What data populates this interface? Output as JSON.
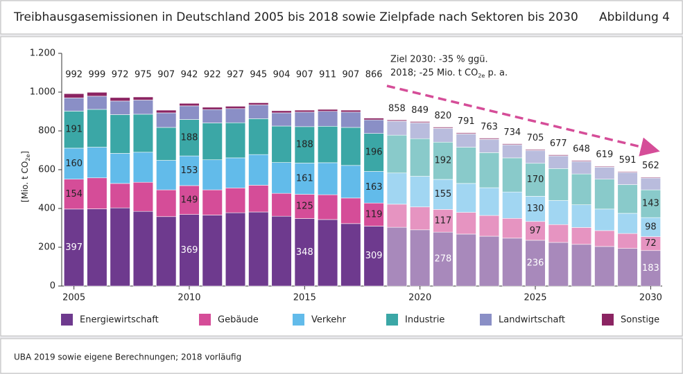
{
  "chart_data": {
    "type": "stacked_bar",
    "title": "Treibhausgasemissionen in Deutschland 2005 bis 2018 sowie Zielpfade nach Sektoren bis 2030",
    "figure_label": "Abbildung 4",
    "source": "UBA 2019 sowie eigene Berechnungen; 2018 vorläufig",
    "y_label": {
      "text": "[Mio. t CO",
      "sub": "2e",
      "end": "]"
    },
    "annotation": {
      "line1": "Ziel 2030: -35 % ggü.",
      "line2a": "2018; -25 Mio. t CO",
      "line2sub": "2e",
      "line2b": " p. a."
    },
    "categories": [
      "2005",
      null,
      null,
      null,
      null,
      "2010",
      null,
      null,
      null,
      null,
      "2015",
      null,
      null,
      null,
      null,
      "2020",
      null,
      null,
      null,
      null,
      "2025",
      null,
      null,
      null,
      null,
      "2030"
    ],
    "forecast_from": 14,
    "totals": [
      992,
      999,
      972,
      975,
      907,
      942,
      922,
      927,
      945,
      904,
      907,
      911,
      907,
      866,
      858,
      849,
      820,
      791,
      763,
      734,
      705,
      677,
      648,
      619,
      591,
      562
    ],
    "ylim": [
      0,
      1200
    ],
    "yticks": [
      0,
      200,
      400,
      600,
      800,
      {
        "value": 1000,
        "label": "1.000"
      },
      {
        "value": 1200,
        "label": "1.200"
      }
    ],
    "series": [
      {
        "name": "Energiewirtschaft",
        "color": "#6e3a8e",
        "label_color": "#ffffff",
        "values": [
          397,
          398,
          403,
          385,
          358,
          369,
          366,
          378,
          382,
          360,
          348,
          343,
          322,
          309,
          303,
          290,
          278,
          268,
          257,
          247,
          236,
          225,
          215,
          204,
          194,
          183
        ],
        "value_labels": [
          "397",
          null,
          null,
          null,
          null,
          "369",
          null,
          null,
          null,
          null,
          "348",
          null,
          null,
          "309",
          null,
          null,
          "278",
          null,
          null,
          null,
          "236",
          null,
          null,
          null,
          null,
          "183"
        ]
      },
      {
        "name": "Gebäude",
        "color": "#d54d98",
        "label_color": "#222222",
        "values": [
          154,
          160,
          126,
          150,
          138,
          149,
          130,
          128,
          138,
          118,
          125,
          128,
          132,
          119,
          119,
          118,
          117,
          112,
          107,
          102,
          97,
          92,
          87,
          82,
          77,
          72
        ],
        "value_labels": [
          "154",
          null,
          null,
          null,
          null,
          "149",
          null,
          null,
          null,
          null,
          "125",
          null,
          null,
          "119",
          null,
          null,
          "117",
          null,
          null,
          null,
          "97",
          null,
          null,
          null,
          null,
          "72"
        ]
      },
      {
        "name": "Verkehr",
        "color": "#62bbea",
        "label_color": "#222222",
        "values": [
          160,
          158,
          155,
          155,
          152,
          153,
          155,
          155,
          158,
          159,
          161,
          165,
          168,
          163,
          161,
          158,
          155,
          149,
          143,
          136,
          130,
          124,
          117,
          111,
          104,
          98
        ],
        "value_labels": [
          "160",
          null,
          null,
          null,
          null,
          "153",
          null,
          null,
          null,
          null,
          "161",
          null,
          null,
          "163",
          null,
          null,
          "155",
          null,
          null,
          null,
          "130",
          null,
          null,
          null,
          null,
          "98"
        ]
      },
      {
        "name": "Industrie",
        "color": "#3ba7a6",
        "label_color": "#222222",
        "values": [
          191,
          195,
          200,
          196,
          170,
          188,
          190,
          181,
          185,
          188,
          188,
          188,
          196,
          196,
          195,
          194,
          192,
          187,
          181,
          176,
          170,
          165,
          159,
          154,
          148,
          143
        ],
        "value_labels": [
          "191",
          null,
          null,
          null,
          null,
          "188",
          null,
          null,
          null,
          null,
          "188",
          null,
          null,
          "196",
          null,
          null,
          "192",
          null,
          null,
          null,
          "170",
          null,
          null,
          null,
          null,
          "143"
        ]
      },
      {
        "name": "Landwirtschaft",
        "color": "#8a8fc6",
        "label_color": "#222222",
        "values": [
          68,
          68,
          70,
          73,
          75,
          70,
          69,
          73,
          71,
          68,
          75,
          77,
          79,
          70,
          72,
          81,
          71,
          68,
          68,
          67,
          66,
          65,
          64,
          62,
          63,
          61
        ]
      },
      {
        "name": "Sonstige",
        "color": "#8b2462",
        "label_color": "#222222",
        "values": [
          22,
          20,
          18,
          16,
          14,
          13,
          12,
          12,
          11,
          11,
          10,
          10,
          10,
          9,
          8,
          8,
          7,
          7,
          7,
          6,
          6,
          6,
          6,
          5,
          5,
          5
        ]
      }
    ]
  }
}
